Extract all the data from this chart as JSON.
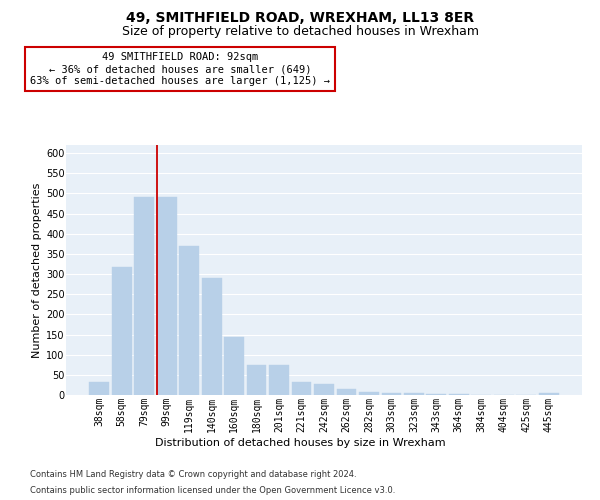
{
  "title": "49, SMITHFIELD ROAD, WREXHAM, LL13 8ER",
  "subtitle": "Size of property relative to detached houses in Wrexham",
  "xlabel": "Distribution of detached houses by size in Wrexham",
  "ylabel": "Number of detached properties",
  "categories": [
    "38sqm",
    "58sqm",
    "79sqm",
    "99sqm",
    "119sqm",
    "140sqm",
    "160sqm",
    "180sqm",
    "201sqm",
    "221sqm",
    "242sqm",
    "262sqm",
    "282sqm",
    "303sqm",
    "323sqm",
    "343sqm",
    "364sqm",
    "384sqm",
    "404sqm",
    "425sqm",
    "445sqm"
  ],
  "values": [
    32,
    318,
    490,
    490,
    370,
    290,
    145,
    75,
    75,
    32,
    28,
    15,
    8,
    5,
    4,
    3,
    2,
    1,
    0,
    0,
    5
  ],
  "bar_color": "#b8d0e8",
  "bar_edge_color": "#b8d0e8",
  "plot_bg_color": "#e8f0f8",
  "grid_color": "#ffffff",
  "annotation_line1": "49 SMITHFIELD ROAD: 92sqm",
  "annotation_line2": "← 36% of detached houses are smaller (649)",
  "annotation_line3": "63% of semi-detached houses are larger (1,125) →",
  "annotation_box_facecolor": "#ffffff",
  "annotation_box_edgecolor": "#cc0000",
  "red_line_x": 2.55,
  "ylim": [
    0,
    620
  ],
  "yticks": [
    0,
    50,
    100,
    150,
    200,
    250,
    300,
    350,
    400,
    450,
    500,
    550,
    600
  ],
  "footer_line1": "Contains HM Land Registry data © Crown copyright and database right 2024.",
  "footer_line2": "Contains public sector information licensed under the Open Government Licence v3.0.",
  "title_fontsize": 10,
  "subtitle_fontsize": 9,
  "axis_label_fontsize": 8,
  "tick_fontsize": 7,
  "annotation_fontsize": 7.5,
  "footer_fontsize": 6
}
